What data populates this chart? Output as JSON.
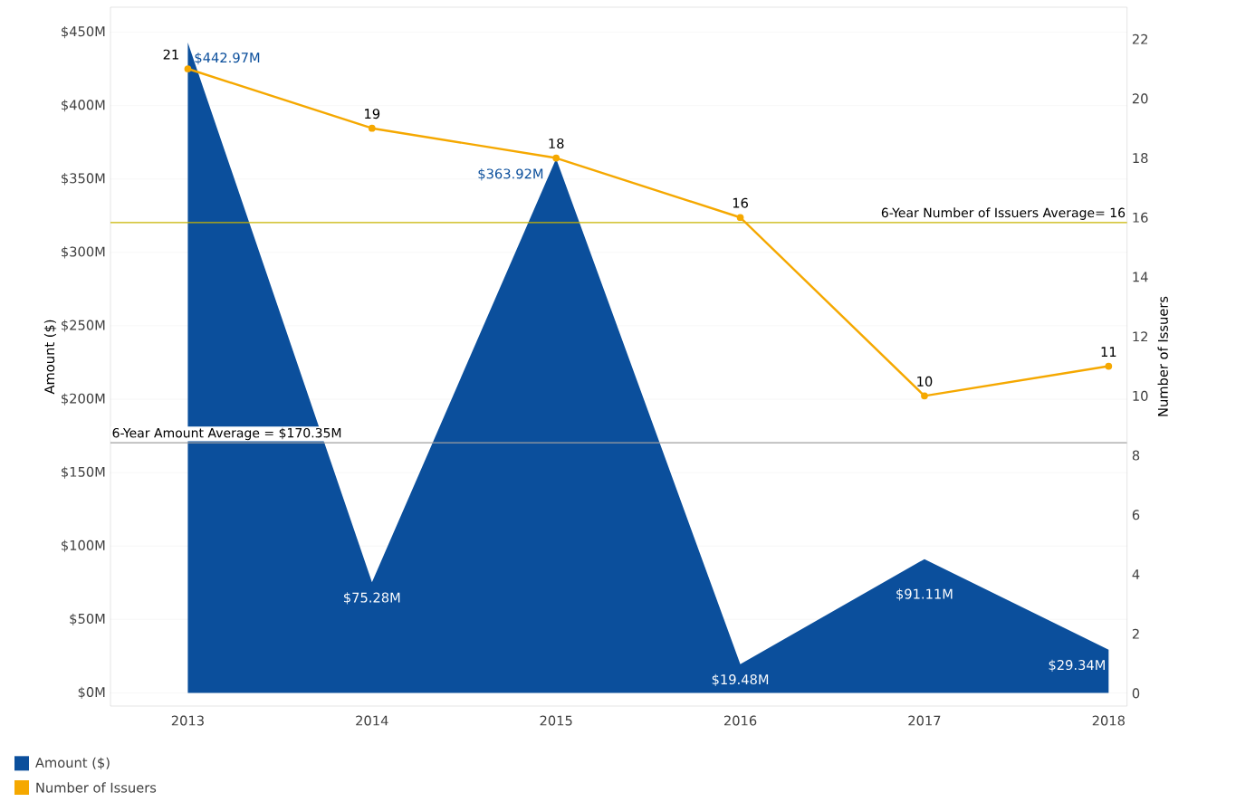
{
  "chart_data": {
    "type": "area",
    "ylabel": "Amount ($)",
    "y2label": "Number of Issuers",
    "categories": [
      "2013",
      "2014",
      "2015",
      "2016",
      "2017",
      "2018"
    ],
    "series": [
      {
        "name": "Amount ($)",
        "color": "#0b4f9c",
        "values": [
          442.97,
          75.28,
          363.92,
          19.48,
          91.11,
          29.34
        ],
        "value_labels": [
          "$442.97M",
          "$75.28M",
          "$363.92M",
          "$19.48M",
          "$91.11M",
          "$29.34M"
        ]
      },
      {
        "name": "Number of Issuers",
        "type": "line",
        "axis": "y2",
        "color": "#f5a800",
        "marker": "circle",
        "line_style": "solid",
        "values": [
          21,
          19,
          18,
          16,
          10,
          11
        ],
        "value_labels": [
          "21",
          "19",
          "18",
          "16",
          "10",
          "11"
        ]
      }
    ],
    "ylim": [
      -9,
      467
    ],
    "yticks": [
      {
        "value": 0,
        "label": "$0M"
      },
      {
        "value": 50,
        "label": "$50M"
      },
      {
        "value": 100,
        "label": "$100M"
      },
      {
        "value": 150,
        "label": "$150M"
      },
      {
        "value": 200,
        "label": "$200M"
      },
      {
        "value": 250,
        "label": "$250M"
      },
      {
        "value": 300,
        "label": "$300M"
      },
      {
        "value": 350,
        "label": "$350M"
      },
      {
        "value": 400,
        "label": "$400M"
      },
      {
        "value": 450,
        "label": "$450M"
      }
    ],
    "y2lim": [
      -0.43,
      23.07
    ],
    "y2ticks": [
      0,
      2,
      4,
      6,
      8,
      10,
      12,
      14,
      16,
      18,
      20,
      22
    ],
    "ref_lines": [
      {
        "axis": "y",
        "value": 170.35,
        "label": "6-Year Amount Average = $170.35M",
        "color": "#a0a0a0"
      },
      {
        "axis": "y2",
        "value": 15.83,
        "label": "6-Year Number of Issuers Average= 16",
        "color": "#c8b400"
      }
    ],
    "grid": "y",
    "legend": "bottom left"
  }
}
